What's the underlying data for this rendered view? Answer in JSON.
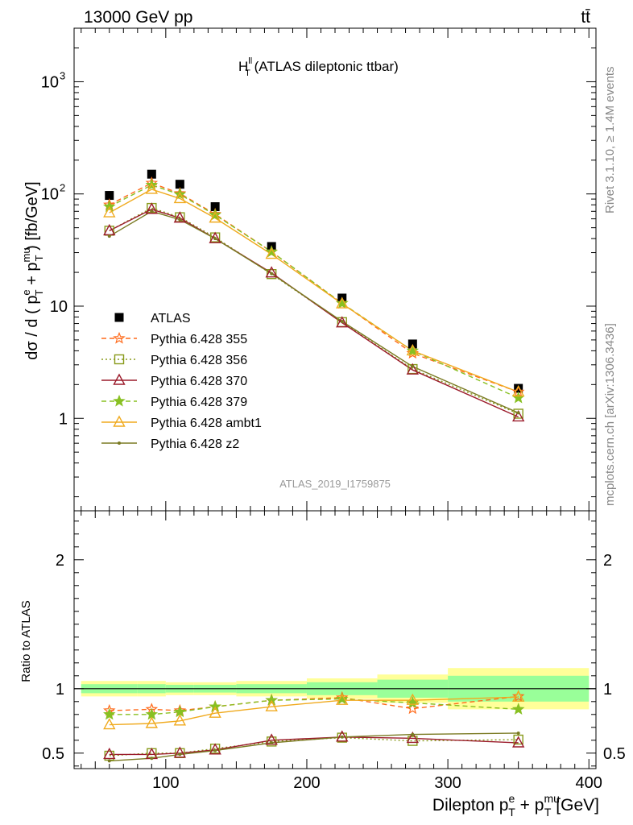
{
  "header": {
    "energy": "13000 GeV pp",
    "process": "tt̄",
    "rivet_version": "Rivet 3.1.10, ≥ 1.4M events",
    "site": "mcplots.cern.ch [arXiv:1306.3436]",
    "analysis_id": "ATLAS_2019_I1759875"
  },
  "colors": {
    "ATLAS": "#000000",
    "355": "#ff6a1a",
    "356": "#889a1a",
    "370": "#9b1b2b",
    "379": "#88c022",
    "ambt1": "#f0aa1e",
    "z2": "#7a7a22",
    "band_outer": "#ffff99",
    "band_inner": "#99ff99"
  },
  "chart_data": [
    {
      "type": "line",
      "panel": "main",
      "title_main": "H",
      "title_sup": "ll",
      "title_sub": "T",
      "title_rest": " (ATLAS dileptonic ttbar)",
      "ylabel": "dσ / d ( p_T^e + p_T^mu ) [fb/GeV]",
      "yscale": "log",
      "ylim": [
        0.15,
        3000
      ],
      "xlim": [
        35,
        405
      ],
      "y_ticks": [
        {
          "v": 1,
          "base": "1",
          "exp": ""
        },
        {
          "v": 10,
          "base": "10",
          "exp": ""
        },
        {
          "v": 100,
          "base": "10",
          "exp": "2"
        },
        {
          "v": 1000,
          "base": "10",
          "exp": "3"
        }
      ],
      "x": [
        60,
        90,
        110,
        135,
        175,
        225,
        275,
        350
      ],
      "series": [
        {
          "name": "ATLAS",
          "key": "ATLAS",
          "marker": "square",
          "line": "none",
          "values": [
            97,
            150,
            122,
            77,
            34,
            11.8,
            4.6,
            1.85
          ]
        },
        {
          "name": "Pythia 6.428 355",
          "key": "355",
          "marker": "star-open",
          "line": "dashed",
          "values": [
            80,
            125,
            101,
            66,
            30.5,
            10.6,
            3.8,
            1.72
          ]
        },
        {
          "name": "Pythia 6.428 356",
          "key": "356",
          "marker": "square-open",
          "line": "dotted",
          "values": [
            47,
            75,
            62,
            41,
            19.3,
            7.2,
            2.75,
            1.1
          ]
        },
        {
          "name": "Pythia 6.428 370",
          "key": "370",
          "marker": "triangle-open",
          "line": "solid",
          "values": [
            47,
            73,
            61,
            40,
            19.8,
            7.1,
            2.7,
            1.03
          ]
        },
        {
          "name": "Pythia 6.428 379",
          "key": "379",
          "marker": "star",
          "line": "dashed",
          "values": [
            77,
            120,
            99,
            65,
            30.5,
            10.6,
            4.0,
            1.52
          ]
        },
        {
          "name": "Pythia 6.428 ambt1",
          "key": "ambt1",
          "marker": "triangle-open",
          "line": "solid",
          "values": [
            68,
            110,
            91,
            61,
            29,
            10.5,
            4.0,
            1.72
          ]
        },
        {
          "name": "Pythia 6.428 z2",
          "key": "z2",
          "marker": "dot",
          "line": "solid",
          "values": [
            42,
            70,
            59,
            40,
            19.5,
            7.3,
            2.9,
            1.12
          ]
        }
      ]
    },
    {
      "type": "line",
      "panel": "ratio",
      "ylabel": "Ratio to ATLAS",
      "xlabel": "Dilepton p_T^e + p_T^mu [GeV]",
      "ylim": [
        0.38,
        2.38
      ],
      "xlim": [
        35,
        405
      ],
      "x_ticks": [
        100,
        200,
        300,
        400
      ],
      "y_ticks": [
        0.5,
        1,
        2
      ],
      "x": [
        60,
        90,
        110,
        135,
        175,
        225,
        275,
        350
      ],
      "bin_edges": [
        40,
        80,
        100,
        120,
        150,
        200,
        250,
        300,
        400
      ],
      "band_outer": [
        0.06,
        0.06,
        0.05,
        0.05,
        0.06,
        0.08,
        0.11,
        0.16
      ],
      "band_inner": [
        0.035,
        0.035,
        0.03,
        0.03,
        0.035,
        0.05,
        0.07,
        0.1
      ],
      "series": [
        {
          "key": "355",
          "marker": "star-open",
          "line": "dashed",
          "values": [
            0.83,
            0.84,
            0.83,
            0.86,
            0.91,
            0.93,
            0.845,
            0.94
          ]
        },
        {
          "key": "356",
          "marker": "square-open",
          "line": "dotted",
          "values": [
            0.48,
            0.5,
            0.5,
            0.535,
            0.59,
            0.62,
            0.595,
            0.605
          ]
        },
        {
          "key": "370",
          "marker": "triangle-open",
          "line": "solid",
          "values": [
            0.49,
            0.49,
            0.5,
            0.525,
            0.6,
            0.625,
            0.615,
            0.58
          ]
        },
        {
          "key": "379",
          "marker": "star",
          "line": "dashed",
          "values": [
            0.8,
            0.8,
            0.82,
            0.86,
            0.91,
            0.92,
            0.89,
            0.84
          ]
        },
        {
          "key": "ambt1",
          "marker": "triangle-open",
          "line": "solid",
          "values": [
            0.72,
            0.73,
            0.75,
            0.81,
            0.86,
            0.91,
            0.91,
            0.935
          ]
        },
        {
          "key": "z2",
          "marker": "dot",
          "line": "solid",
          "values": [
            0.44,
            0.46,
            0.49,
            0.52,
            0.58,
            0.625,
            0.645,
            0.655
          ]
        }
      ]
    }
  ]
}
